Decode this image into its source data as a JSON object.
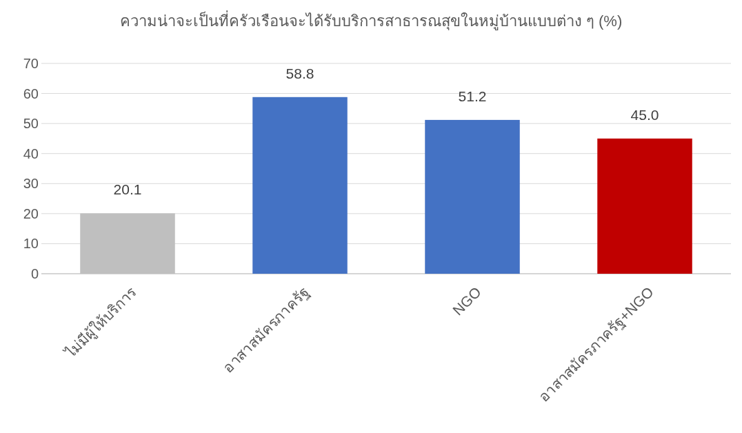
{
  "chart_data": {
    "type": "bar",
    "title": "ความน่าจะเป็นที่ครัวเรือนจะได้รับบริการสาธารณสุขในหมู่บ้านแบบต่าง ๆ (%)",
    "categories": [
      "ไม่มีผู้ให้บริการ",
      "อาสาสมัครภาครัฐ",
      "NGO",
      "อาสาสมัครภาครัฐ+NGO"
    ],
    "values": [
      20.1,
      58.8,
      51.2,
      45.0
    ],
    "colors": [
      "#bfbfbf",
      "#4472c4",
      "#4472c4",
      "#c00000"
    ],
    "value_labels": [
      "20.1",
      "58.8",
      "51.2",
      "45.0"
    ],
    "ylim": [
      0,
      70
    ],
    "yticks": [
      0,
      10,
      20,
      30,
      40,
      50,
      60,
      70
    ],
    "grid": "y"
  }
}
